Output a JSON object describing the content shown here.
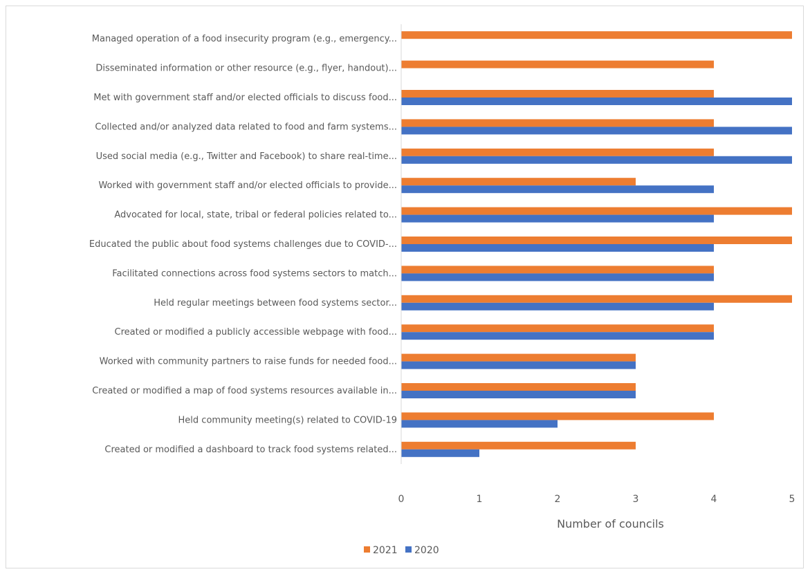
{
  "chart_data": {
    "type": "bar",
    "orientation": "horizontal",
    "title": "",
    "xlabel": "Number of councils",
    "ylabel": "",
    "xlim": [
      0,
      5
    ],
    "xticks": [
      "0",
      "1",
      "2",
      "3",
      "4",
      "5"
    ],
    "grid": false,
    "legend_position": "bottom",
    "categories": [
      "Managed operation of a food insecurity program (e.g., emergency...",
      "Disseminated information or other resource (e.g., flyer, handout)...",
      "Met with government staff and/or elected officials to discuss food...",
      "Collected and/or analyzed data related to food and farm systems...",
      "Used social media (e.g., Twitter and Facebook) to share real-time...",
      "Worked with government staff and/or elected officials to provide...",
      "Advocated for local, state, tribal or federal policies related to...",
      "Educated the public about food systems challenges due to COVID-...",
      "Facilitated connections across food systems sectors to match...",
      "Held regular meetings between food systems sector...",
      "Created or modified a publicly accessible webpage with food...",
      "Worked with community partners to raise funds for needed food...",
      "Created or modified a map of food systems resources available in...",
      "Held community meeting(s) related to COVID-19",
      "Created or modified a dashboard to track food systems related..."
    ],
    "series": [
      {
        "name": "2021",
        "color": "#ed7d31",
        "values": [
          5,
          4,
          4,
          4,
          4,
          3,
          5,
          5,
          4,
          5,
          4,
          3,
          3,
          4,
          3
        ]
      },
      {
        "name": "2020",
        "color": "#4472c4",
        "values": [
          0,
          0,
          5,
          5,
          5,
          4,
          4,
          4,
          4,
          4,
          4,
          3,
          3,
          2,
          1
        ]
      }
    ]
  }
}
